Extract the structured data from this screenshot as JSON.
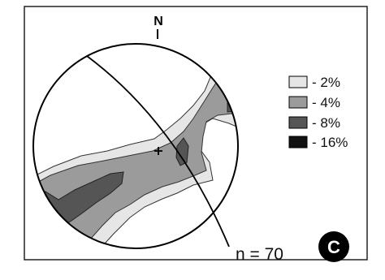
{
  "north_label": "N",
  "legend": [
    {
      "label": "- 2%",
      "color": "#e6e6e6"
    },
    {
      "label": "- 4%",
      "color": "#9b9b9b"
    },
    {
      "label": "- 8%",
      "color": "#555555"
    },
    {
      "label": "- 16%",
      "color": "#111111"
    }
  ],
  "sample_count": "n = 70",
  "panel_label": "C"
}
